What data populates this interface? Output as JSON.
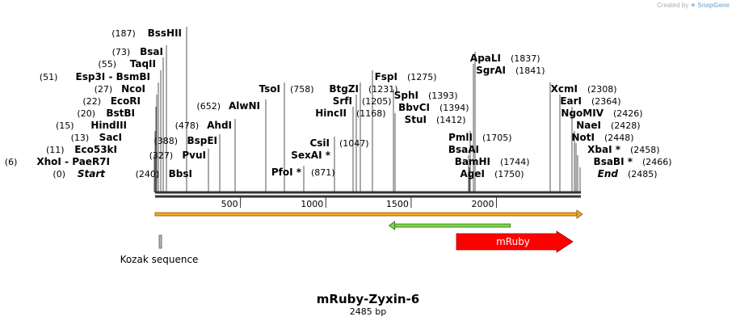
{
  "credit": {
    "prefix": "Created by",
    "brand": "SnapGene"
  },
  "map": {
    "name": "mRuby-Zyxin-6",
    "length_label": "2485 bp",
    "length": 2485
  },
  "ruler": {
    "ticks": [
      {
        "bp": 500,
        "label": "500"
      },
      {
        "bp": 1000,
        "label": "1000"
      },
      {
        "bp": 1500,
        "label": "1500"
      },
      {
        "bp": 2000,
        "label": "2000"
      }
    ]
  },
  "sites": [
    {
      "name": "BssHII",
      "pos": "(187)",
      "bp": 187
    },
    {
      "name": "BsaI",
      "pos": "(73)",
      "bp": 73
    },
    {
      "name": "TaqII",
      "pos": "(55)",
      "bp": 55
    },
    {
      "name": "Esp3I - BsmBI",
      "pos": "(51)",
      "bp": 51
    },
    {
      "name": "NcoI",
      "pos": "(27)",
      "bp": 27
    },
    {
      "name": "EcoRI",
      "pos": "(22)",
      "bp": 22
    },
    {
      "name": "BstBI",
      "pos": "(20)",
      "bp": 20
    },
    {
      "name": "HindIII",
      "pos": "(15)",
      "bp": 15
    },
    {
      "name": "SacI",
      "pos": "(13)",
      "bp": 13
    },
    {
      "name": "Eco53kI",
      "pos": "(11)",
      "bp": 11
    },
    {
      "name": "XhoI - PaeR7I",
      "pos": "(6)",
      "bp": 6
    },
    {
      "name": "Start",
      "pos": "(0)",
      "bp": 0,
      "italic": true
    },
    {
      "name": "BspEI",
      "pos": "(388)",
      "bp": 388
    },
    {
      "name": "PvuI",
      "pos": "(327)",
      "bp": 327
    },
    {
      "name": "BbsI",
      "pos": "(240)",
      "bp": 240
    },
    {
      "name": "AhdI",
      "pos": "(478)",
      "bp": 478
    },
    {
      "name": "AlwNI",
      "pos": "(652)",
      "bp": 652
    },
    {
      "name": "TsoI",
      "pos": "(758)",
      "bp": 758
    },
    {
      "name": "PfoI *",
      "pos": "(871)",
      "bp": 871
    },
    {
      "name": "CsiI",
      "pos": "(1047)",
      "bp": 1047
    },
    {
      "name": "SexAI *",
      "pos": "",
      "bp": 1047
    },
    {
      "name": "BtgZI",
      "pos": "(1231)",
      "bp": 1231
    },
    {
      "name": "SrfI",
      "pos": "(1205)",
      "bp": 1205
    },
    {
      "name": "HincII",
      "pos": "(1168)",
      "bp": 1168
    },
    {
      "name": "FspI",
      "pos": "(1275)",
      "bp": 1275
    },
    {
      "name": "SphI",
      "pos": "(1393)",
      "bp": 1393
    },
    {
      "name": "BbvCI",
      "pos": "(1394)",
      "bp": 1394
    },
    {
      "name": "StuI",
      "pos": "(1412)",
      "bp": 1412
    },
    {
      "name": "ApaLI",
      "pos": "(1837)",
      "bp": 1837
    },
    {
      "name": "SgrAI",
      "pos": "(1841)",
      "bp": 1841
    },
    {
      "name": "PmlI",
      "pos": "(1705)",
      "bp": 1705
    },
    {
      "name": "BsaAI",
      "pos": "",
      "bp": 1705
    },
    {
      "name": "BamHI",
      "pos": "(1744)",
      "bp": 1744
    },
    {
      "name": "AgeI",
      "pos": "(1750)",
      "bp": 1750
    },
    {
      "name": "XcmI",
      "pos": "(2308)",
      "bp": 2308
    },
    {
      "name": "EarI",
      "pos": "(2364)",
      "bp": 2364
    },
    {
      "name": "NgoMIV",
      "pos": "(2426)",
      "bp": 2426
    },
    {
      "name": "NaeI",
      "pos": "(2428)",
      "bp": 2428
    },
    {
      "name": "NotI",
      "pos": "(2448)",
      "bp": 2448
    },
    {
      "name": "XbaI *",
      "pos": "(2458)",
      "bp": 2458
    },
    {
      "name": "BsaBI *",
      "pos": "(2466)",
      "bp": 2466
    },
    {
      "name": "End",
      "pos": "(2485)",
      "bp": 2485,
      "italic": true
    }
  ],
  "features": [
    {
      "name": "orf-forward",
      "label": "",
      "start": 0,
      "end": 2485,
      "direction": "forward",
      "color": "#f5a623"
    },
    {
      "name": "orf-reverse",
      "label": "",
      "start": 1300,
      "end": 2100,
      "direction": "reverse",
      "color": "#7fd64a"
    },
    {
      "name": "mRuby",
      "label": "mRuby",
      "start": 1765,
      "end": 2485,
      "direction": "forward",
      "color": "#ff0000"
    },
    {
      "name": "Kozak sequence",
      "label": "Kozak sequence",
      "start": 0,
      "end": 8,
      "direction": "none",
      "color": "#bbbbbb"
    }
  ]
}
